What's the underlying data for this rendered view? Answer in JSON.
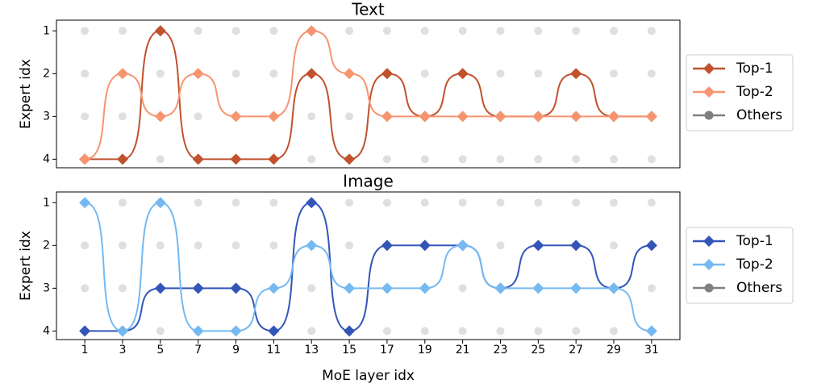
{
  "chart_data": [
    {
      "type": "line",
      "title": "Text",
      "ylabel": "Expert idx",
      "x": [
        1,
        3,
        5,
        7,
        9,
        11,
        13,
        15,
        17,
        19,
        21,
        23,
        25,
        27,
        29,
        31
      ],
      "series": [
        {
          "name": "Top-1",
          "color": "#c0522d",
          "values": [
            4,
            4,
            1,
            4,
            4,
            4,
            2,
            4,
            2,
            3,
            2,
            3,
            3,
            2,
            3,
            3
          ]
        },
        {
          "name": "Top-2",
          "color": "#f79470",
          "values": [
            4,
            2,
            3,
            2,
            3,
            3,
            1,
            2,
            3,
            3,
            3,
            3,
            3,
            3,
            3,
            3
          ]
        },
        {
          "name": "Others",
          "color": "#808080"
        }
      ],
      "xlim": [
        -0.5,
        32.5
      ],
      "ylim": [
        4.2,
        0.75
      ],
      "yticks": [
        1,
        2,
        3,
        4
      ],
      "y_inverted": true
    },
    {
      "type": "line",
      "title": "Image",
      "ylabel": "Expert idx",
      "xlabel": "MoE layer idx",
      "x": [
        1,
        3,
        5,
        7,
        9,
        11,
        13,
        15,
        17,
        19,
        21,
        23,
        25,
        27,
        29,
        31
      ],
      "series": [
        {
          "name": "Top-1",
          "color": "#3355b8",
          "values": [
            4,
            4,
            3,
            3,
            3,
            4,
            1,
            4,
            2,
            2,
            2,
            3,
            2,
            2,
            3,
            2
          ]
        },
        {
          "name": "Top-2",
          "color": "#74b9f2",
          "values": [
            1,
            4,
            1,
            4,
            4,
            3,
            2,
            3,
            3,
            3,
            2,
            3,
            3,
            3,
            3,
            4
          ]
        },
        {
          "name": "Others",
          "color": "#808080"
        }
      ],
      "xlim": [
        -0.5,
        32.5
      ],
      "ylim": [
        4.2,
        0.75
      ],
      "yticks": [
        1,
        2,
        3,
        4
      ],
      "xticks": [
        1,
        3,
        5,
        7,
        9,
        11,
        13,
        15,
        17,
        19,
        21,
        23,
        25,
        27,
        29,
        31
      ],
      "y_inverted": true
    }
  ]
}
